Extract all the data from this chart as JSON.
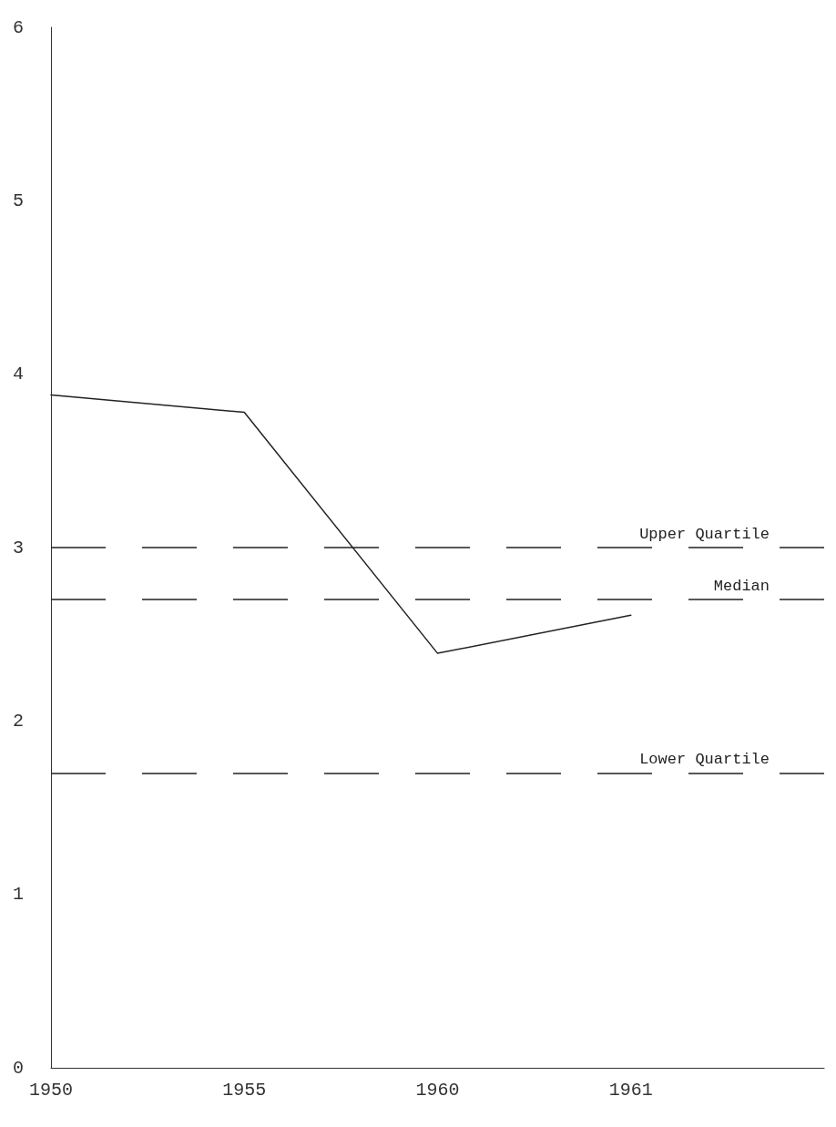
{
  "chart_data": {
    "type": "line",
    "categories": [
      "1950",
      "1955",
      "1960",
      "1961",
      null
    ],
    "series": [
      {
        "color": "#222222",
        "values": [
          3.88,
          3.78,
          2.39,
          2.61,
          null
        ]
      }
    ],
    "ylim": [
      0,
      6
    ],
    "yticks": [
      0,
      1,
      2,
      3,
      4,
      5,
      6
    ],
    "grid": false,
    "marker": "none",
    "line_style": "solid",
    "ref_lines": [
      {
        "axis": "y",
        "value": 3.0,
        "label": "Upper Quartile",
        "color": "#222222",
        "line_style": "dashed"
      },
      {
        "axis": "y",
        "value": 2.7,
        "label": "Median",
        "color": "#222222",
        "line_style": "dashed"
      },
      {
        "axis": "y",
        "value": 1.7,
        "label": "Lower Quartile",
        "color": "#222222",
        "line_style": "dashed"
      }
    ]
  }
}
